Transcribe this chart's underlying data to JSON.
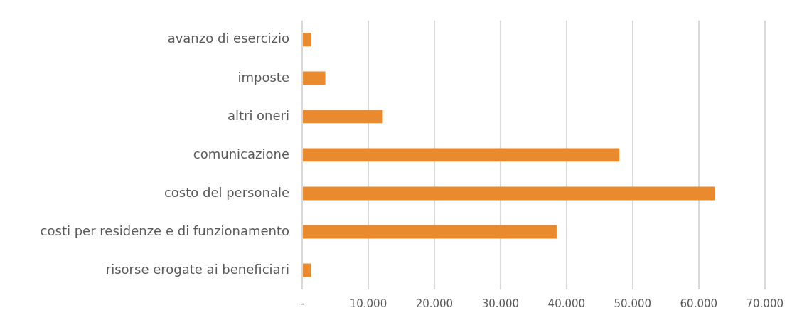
{
  "chart_data": {
    "type": "bar",
    "orientation": "horizontal",
    "categories": [
      "avanzo di esercizio",
      "imposte",
      "altri oneri",
      "comunicazione",
      "costo del personale",
      "costi per residenze e di funzionamento",
      "risorse erogate ai beneficiari"
    ],
    "values": [
      1400,
      3500,
      12200,
      48000,
      62400,
      38500,
      1300
    ],
    "color": "#e98a2e",
    "xlim": [
      0,
      70000
    ],
    "xticks": [
      {
        "value": 0,
        "label": "-"
      },
      {
        "value": 10000,
        "label": "10.000"
      },
      {
        "value": 20000,
        "label": "20.000"
      },
      {
        "value": 30000,
        "label": "30.000"
      },
      {
        "value": 40000,
        "label": "40.000"
      },
      {
        "value": 50000,
        "label": "50.000"
      },
      {
        "value": 60000,
        "label": "60.000"
      },
      {
        "value": 70000,
        "label": "70.000"
      }
    ],
    "grid": "x"
  }
}
